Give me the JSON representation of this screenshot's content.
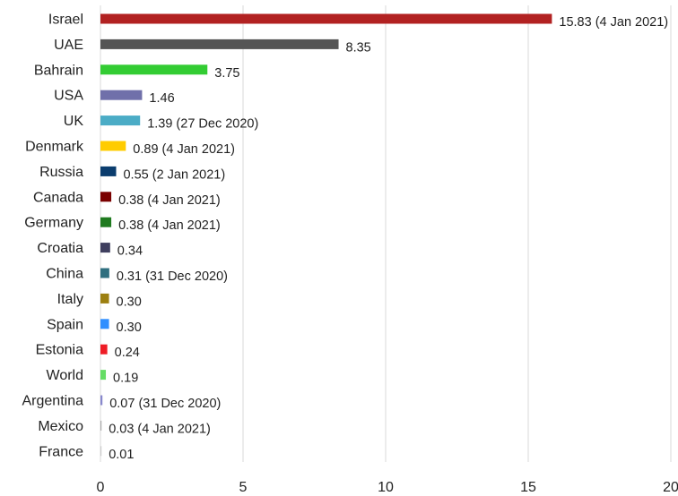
{
  "chart_data": {
    "type": "bar",
    "orientation": "horizontal",
    "title": "",
    "xlabel": "",
    "ylabel": "",
    "xlim": [
      0,
      20
    ],
    "xticks": [
      0,
      5,
      10,
      15,
      20
    ],
    "grid": true,
    "legend": "none",
    "categories": [
      "Israel",
      "UAE",
      "Bahrain",
      "USA",
      "UK",
      "Denmark",
      "Russia",
      "Canada",
      "Germany",
      "Croatia",
      "China",
      "Italy",
      "Spain",
      "Estonia",
      "World",
      "Argentina",
      "Mexico",
      "France"
    ],
    "values": [
      15.83,
      8.35,
      3.75,
      1.46,
      1.39,
      0.89,
      0.55,
      0.38,
      0.38,
      0.34,
      0.31,
      0.3,
      0.3,
      0.24,
      0.19,
      0.07,
      0.03,
      0.01
    ],
    "data_labels": [
      "15.83 (4 Jan 2021)",
      "8.35",
      "3.75",
      "1.46",
      "1.39 (27 Dec 2020)",
      "0.89 (4 Jan 2021)",
      "0.55 (2 Jan 2021)",
      "0.38 (4 Jan 2021)",
      "0.38 (4 Jan 2021)",
      "0.34",
      "0.31 (31 Dec 2020)",
      "0.30",
      "0.30",
      "0.24",
      "0.19",
      "0.07 (31 Dec 2020)",
      "0.03 (4 Jan 2021)",
      "0.01"
    ],
    "colors": [
      "#b22222",
      "#555555",
      "#33cc33",
      "#7070aa",
      "#4bacc6",
      "#ffcc00",
      "#0b3d6e",
      "#7a0000",
      "#1f7a1f",
      "#3f3f5f",
      "#2f6f7f",
      "#9c7f10",
      "#2f8fff",
      "#ee1c25",
      "#66dd66",
      "#8888cc",
      "#aaaaaa",
      "#cccccc"
    ]
  }
}
